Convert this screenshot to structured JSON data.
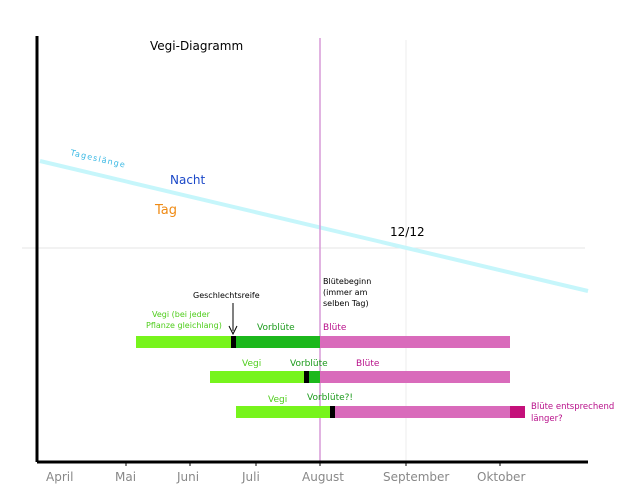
{
  "title": "Vegi-Diagramm",
  "months": [
    "April",
    "Mai",
    "Juni",
    "Juli",
    "August",
    "September",
    "Oktober"
  ],
  "day_length_label": "Tageslänge",
  "night_label": "Nacht",
  "day_label": "Tag",
  "equinox_label": "12/12",
  "flowering_start_label": [
    "Blütebeginn",
    "(immer am",
    "selben Tag)"
  ],
  "sexual_maturity_label": "Geschlechtsreife",
  "rows": [
    {
      "vegi_label": [
        "Vegi (bei jeder",
        "Pflanze gleichlang)"
      ],
      "preflower_label": "Vorblüte",
      "flower_label": "Blüte"
    },
    {
      "vegi_label": [
        "Vegi"
      ],
      "preflower_label": "Vorblüte",
      "flower_label": "Blüte"
    },
    {
      "vegi_label": [
        "Vegi"
      ],
      "preflower_label": "Vorblüte?!",
      "flower_label": "",
      "extension_label": [
        "Blüte entsprechend",
        "länger?"
      ]
    }
  ],
  "colors": {
    "vegi": "#77f41c",
    "preflower": "#1cb81c",
    "flower": "#d96bbb",
    "flower_extension": "#c4107a",
    "day_length_line": "#c6f6fb",
    "day_length_text": "#38b8e4",
    "night_text": "#1b48c8",
    "day_text": "#ef8a14",
    "vegi_text": "#4fcd1c",
    "preflower_text": "#1a9a1a",
    "flower_text": "#b8108a",
    "flower_start_line": "#d79ad7",
    "marker": "#000000",
    "axis": "#000000",
    "month_text": "#888888"
  }
}
